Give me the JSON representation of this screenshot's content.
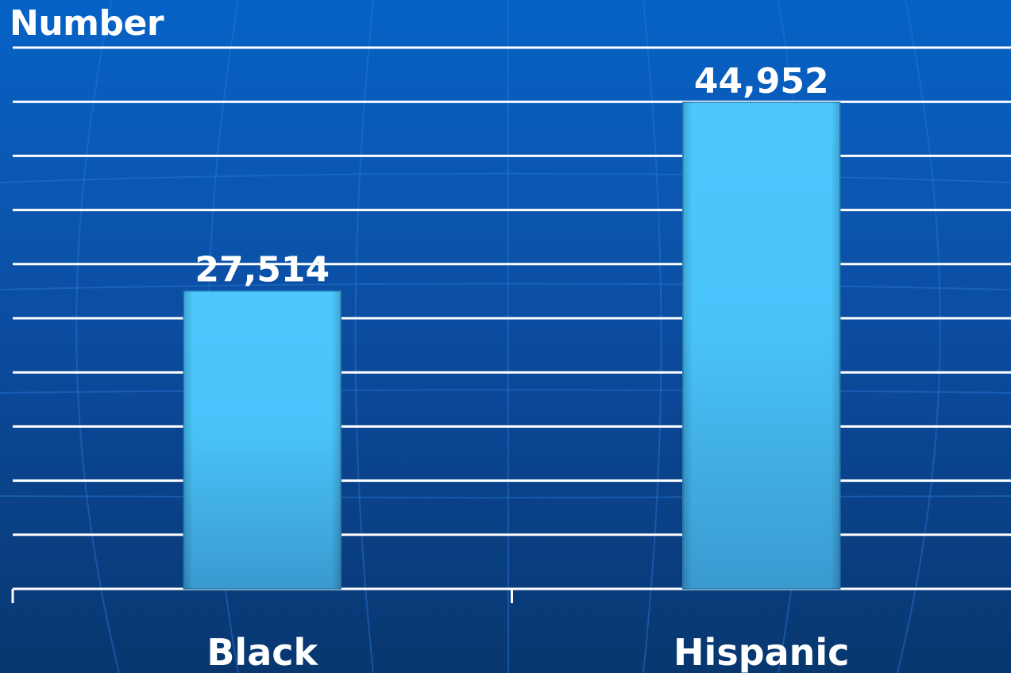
{
  "chart_data": {
    "type": "bar",
    "ylabel": "Number",
    "categories": [
      "Black",
      "Hispanic"
    ],
    "values": [
      27514,
      44952
    ],
    "value_labels": [
      "27,514",
      "44,952"
    ],
    "ylim": [
      0,
      50000
    ],
    "grid": true,
    "gridline_count": 10
  },
  "colors": {
    "background_top": "#0662c6",
    "background_bottom": "#08376f",
    "bar_top": "#4cc8ff",
    "bar_bottom": "#3a9ad0",
    "gridline": "#ffffff",
    "text": "#ffffff"
  }
}
